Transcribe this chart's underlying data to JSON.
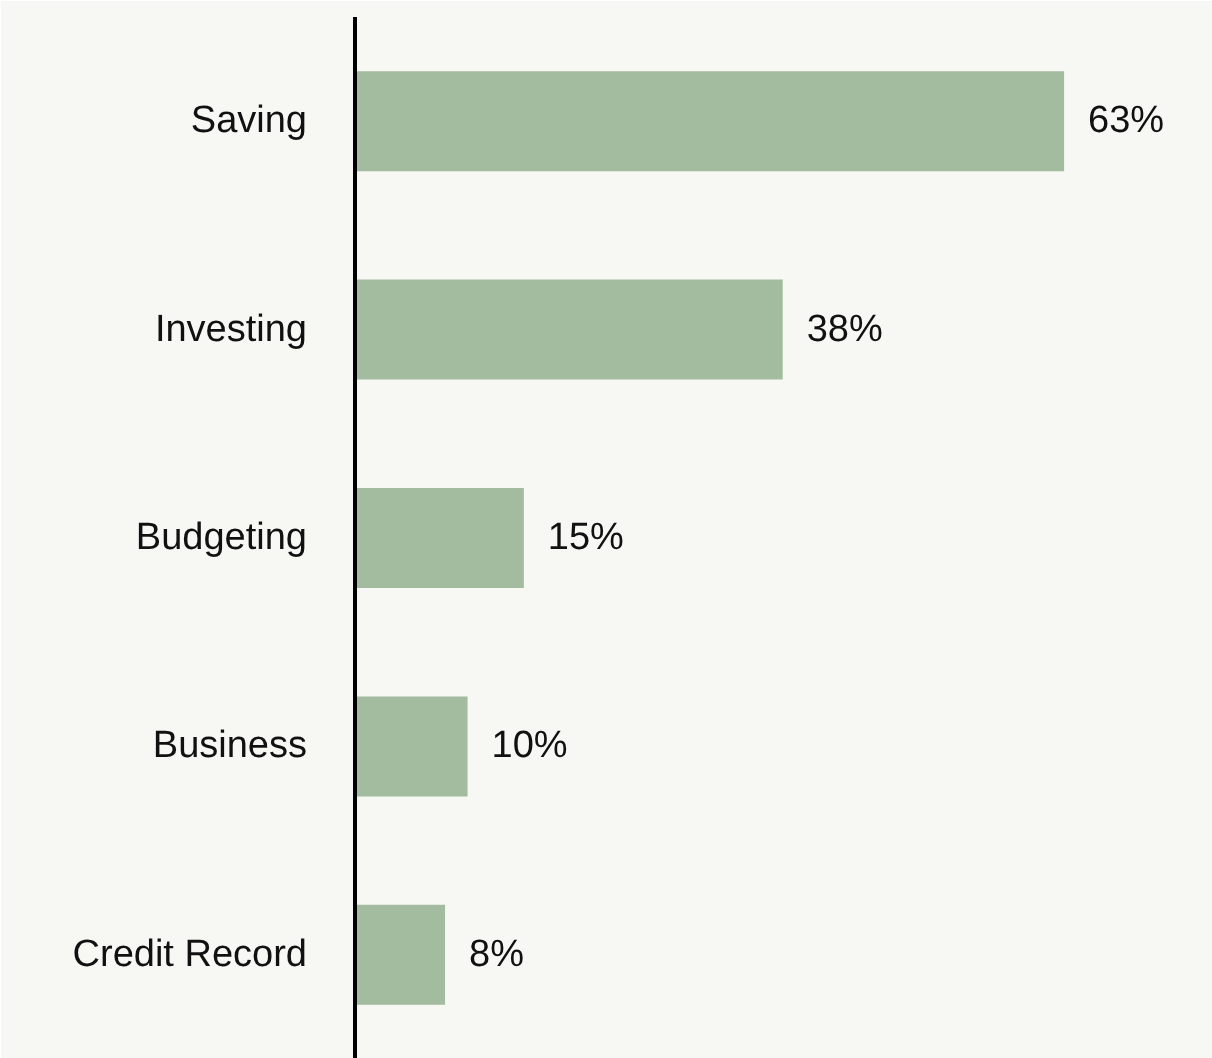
{
  "chart_data": {
    "type": "bar",
    "orientation": "horizontal",
    "categories": [
      "Saving",
      "Investing",
      "Budgeting",
      "Business",
      "Credit Record"
    ],
    "values": [
      63,
      38,
      15,
      10,
      8
    ],
    "color": "#a3bb9f",
    "value_labels": [
      "63%",
      "38%",
      "15%",
      "10%",
      "8%"
    ]
  }
}
